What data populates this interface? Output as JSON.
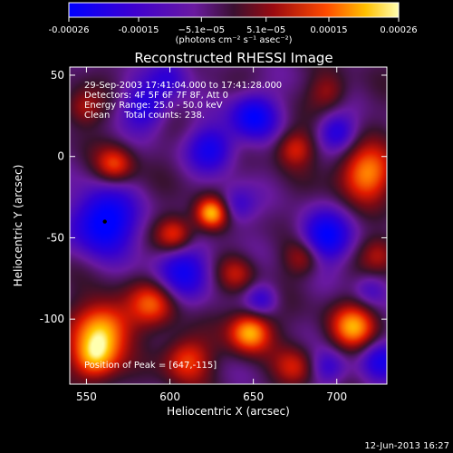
{
  "chart_data": {
    "type": "heatmap",
    "title": "Reconstructed RHESSI Image",
    "xlabel": "Heliocentric X (arcsec)",
    "ylabel": "Heliocentric Y (arcsec)",
    "xlim": [
      540,
      730
    ],
    "ylim": [
      -140,
      55
    ],
    "x_ticks": [
      550,
      600,
      650,
      700
    ],
    "y_ticks": [
      50,
      0,
      -50,
      -100
    ],
    "colorbar": {
      "range": [
        -0.00026,
        0.00026
      ],
      "tick_values": [
        -0.00026,
        -0.00015,
        -5.1e-05,
        5.1e-05,
        0.00015,
        0.00026
      ],
      "tick_labels": [
        "-0.00026",
        "-0.00015",
        "−5.1e−05",
        "5.1e−05",
        "0.00015",
        "0.00026"
      ],
      "unit_label": "(photons cm⁻² s⁻¹ asec⁻²)"
    },
    "annotations": [
      "29-Sep-2003 17:41:04.000 to 17:41:28.000",
      "Detectors: 4F 5F 6F 7F 8F, Att 0",
      "Energy Range: 25.0 - 50.0 keV",
      "Clean     Total counts: 238."
    ],
    "peak_label": "Position of Peak = [647,-115]",
    "marker": {
      "x": 561,
      "y": -40
    },
    "grid": false,
    "blobs": [
      {
        "x": 625,
        "y": -35,
        "v": 1.0,
        "s": 7
      },
      {
        "x": 648,
        "y": -108,
        "v": 1.0,
        "s": 9
      },
      {
        "x": 560,
        "y": -105,
        "v": 0.95,
        "s": 12
      },
      {
        "x": 555,
        "y": -125,
        "v": 0.85,
        "s": 10
      },
      {
        "x": 718,
        "y": -10,
        "v": 0.85,
        "s": 12
      },
      {
        "x": 710,
        "y": -105,
        "v": 0.85,
        "s": 10
      },
      {
        "x": 603,
        "y": -48,
        "v": 0.7,
        "s": 8
      },
      {
        "x": 590,
        "y": -90,
        "v": 0.65,
        "s": 10
      },
      {
        "x": 610,
        "y": -125,
        "v": 0.7,
        "s": 10
      },
      {
        "x": 567,
        "y": -5,
        "v": 0.65,
        "s": 8
      },
      {
        "x": 675,
        "y": 5,
        "v": 0.55,
        "s": 8
      },
      {
        "x": 680,
        "y": -62,
        "v": 0.5,
        "s": 8
      },
      {
        "x": 640,
        "y": -72,
        "v": 0.45,
        "s": 8
      },
      {
        "x": 695,
        "y": 40,
        "v": 0.4,
        "s": 8
      },
      {
        "x": 548,
        "y": 30,
        "v": 0.45,
        "s": 8
      },
      {
        "x": 675,
        "y": -130,
        "v": 0.5,
        "s": 9
      },
      {
        "x": 726,
        "y": -60,
        "v": 0.45,
        "s": 8
      },
      {
        "x": 560,
        "y": -40,
        "v": -1.0,
        "s": 14
      },
      {
        "x": 650,
        "y": 25,
        "v": -0.85,
        "s": 10
      },
      {
        "x": 693,
        "y": -50,
        "v": -0.85,
        "s": 11
      },
      {
        "x": 608,
        "y": -70,
        "v": -0.7,
        "s": 12
      },
      {
        "x": 585,
        "y": 30,
        "v": -0.6,
        "s": 10
      },
      {
        "x": 625,
        "y": 5,
        "v": -0.7,
        "s": 10
      },
      {
        "x": 700,
        "y": 15,
        "v": -0.6,
        "s": 8
      },
      {
        "x": 727,
        "y": -125,
        "v": -0.6,
        "s": 9
      },
      {
        "x": 640,
        "y": -30,
        "v": -0.5,
        "s": 8
      },
      {
        "x": 655,
        "y": -88,
        "v": -0.5,
        "s": 7
      },
      {
        "x": 695,
        "y": -130,
        "v": -0.5,
        "s": 8
      },
      {
        "x": 600,
        "y": 50,
        "v": -0.5,
        "s": 9
      },
      {
        "x": 720,
        "y": -82,
        "v": -0.35,
        "s": 7
      }
    ]
  },
  "footer": {
    "timestamp": "12-Jun-2013 16:27"
  }
}
